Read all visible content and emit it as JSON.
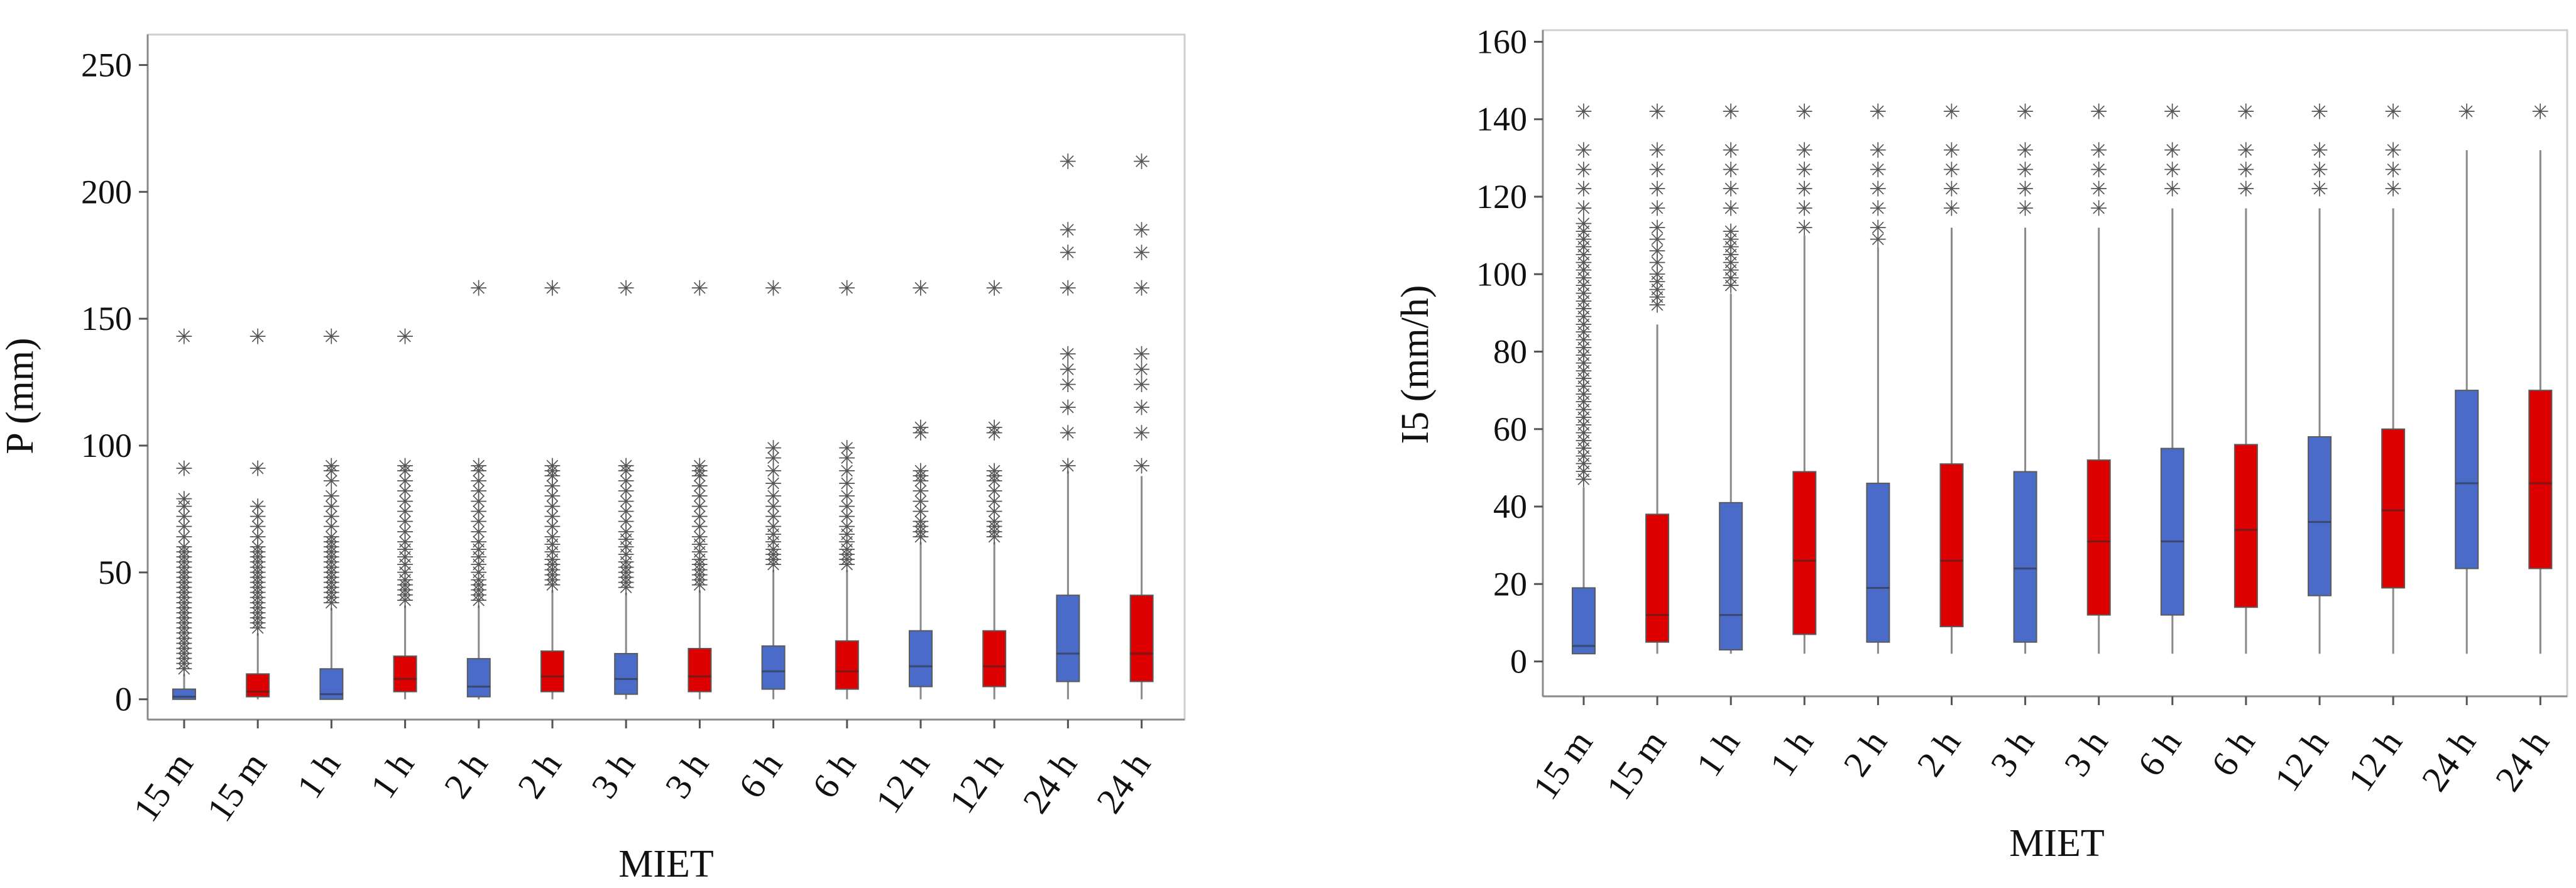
{
  "colors": {
    "blue": "#4a6cc8",
    "red": "#dd0000",
    "outlier": "#555555"
  },
  "chart_data": [
    {
      "type": "box",
      "title": "",
      "xlabel": "MIET",
      "ylabel": "P (mm)",
      "ylim": [
        -8,
        262
      ],
      "yticks": [
        0,
        50,
        100,
        150,
        200,
        250
      ],
      "outlier_symbol": "✳",
      "categories": [
        "15 m",
        "15 m",
        "1 h",
        "1 h",
        "2 h",
        "2 h",
        "3 h",
        "3 h",
        "6 h",
        "6 h",
        "12 h",
        "12 h",
        "24 h",
        "24 h"
      ],
      "series": [
        {
          "label": "15 m",
          "color": "blue",
          "q1": 0,
          "median": 1,
          "q3": 4,
          "whisker_low": 0,
          "whisker_high": 10,
          "outliers": [
            12,
            14,
            16,
            18,
            20,
            22,
            24,
            26,
            28,
            30,
            32,
            34,
            36,
            38,
            40,
            42,
            44,
            46,
            48,
            50,
            52,
            54,
            56,
            58,
            60,
            64,
            68,
            72,
            76,
            79,
            91,
            143
          ]
        },
        {
          "label": "15 m",
          "color": "red",
          "q1": 1,
          "median": 3,
          "q3": 10,
          "whisker_low": 0,
          "whisker_high": 26,
          "outliers": [
            28,
            30,
            32,
            34,
            36,
            38,
            40,
            42,
            44,
            46,
            48,
            50,
            52,
            54,
            56,
            58,
            60,
            64,
            68,
            72,
            76,
            91,
            143
          ]
        },
        {
          "label": "1 h",
          "color": "blue",
          "q1": 0,
          "median": 2,
          "q3": 12,
          "whisker_low": 0,
          "whisker_high": 36,
          "outliers": [
            38,
            40,
            42,
            44,
            46,
            48,
            50,
            52,
            54,
            56,
            58,
            60,
            62,
            64,
            68,
            72,
            76,
            80,
            86,
            90,
            92,
            143
          ]
        },
        {
          "label": "1 h",
          "color": "red",
          "q1": 3,
          "median": 8,
          "q3": 17,
          "whisker_low": 0,
          "whisker_high": 37,
          "outliers": [
            39,
            41,
            43,
            45,
            47,
            50,
            53,
            56,
            59,
            62,
            66,
            70,
            74,
            78,
            82,
            86,
            90,
            92,
            143
          ]
        },
        {
          "label": "2 h",
          "color": "blue",
          "q1": 1,
          "median": 5,
          "q3": 16,
          "whisker_low": 0,
          "whisker_high": 37,
          "outliers": [
            39,
            41,
            43,
            45,
            47,
            50,
            53,
            56,
            59,
            62,
            66,
            70,
            74,
            78,
            82,
            86,
            90,
            92,
            162
          ]
        },
        {
          "label": "2 h",
          "color": "red",
          "q1": 3,
          "median": 9,
          "q3": 19,
          "whisker_low": 0,
          "whisker_high": 43,
          "outliers": [
            45,
            47,
            49,
            51,
            53,
            55,
            58,
            61,
            64,
            68,
            72,
            76,
            80,
            84,
            88,
            90,
            92,
            162
          ]
        },
        {
          "label": "3 h",
          "color": "blue",
          "q1": 2,
          "median": 8,
          "q3": 18,
          "whisker_low": 0,
          "whisker_high": 42,
          "outliers": [
            44,
            46,
            48,
            50,
            52,
            54,
            57,
            60,
            63,
            66,
            70,
            74,
            78,
            82,
            86,
            90,
            92,
            162
          ]
        },
        {
          "label": "3 h",
          "color": "red",
          "q1": 3,
          "median": 9,
          "q3": 20,
          "whisker_low": 0,
          "whisker_high": 43,
          "outliers": [
            45,
            47,
            49,
            51,
            53,
            55,
            58,
            61,
            64,
            68,
            72,
            76,
            80,
            84,
            88,
            90,
            92,
            162
          ]
        },
        {
          "label": "6 h",
          "color": "blue",
          "q1": 4,
          "median": 11,
          "q3": 21,
          "whisker_low": 0,
          "whisker_high": 51,
          "outliers": [
            53,
            55,
            57,
            59,
            62,
            65,
            68,
            72,
            76,
            80,
            85,
            90,
            95,
            99,
            162
          ]
        },
        {
          "label": "6 h",
          "color": "red",
          "q1": 4,
          "median": 11,
          "q3": 23,
          "whisker_low": 0,
          "whisker_high": 51,
          "outliers": [
            53,
            55,
            57,
            59,
            62,
            65,
            68,
            72,
            76,
            80,
            85,
            90,
            95,
            99,
            162
          ]
        },
        {
          "label": "12 h",
          "color": "blue",
          "q1": 5,
          "median": 13,
          "q3": 27,
          "whisker_low": 0,
          "whisker_high": 62,
          "outliers": [
            64,
            66,
            68,
            70,
            74,
            78,
            82,
            86,
            88,
            90,
            105,
            107,
            162
          ]
        },
        {
          "label": "12 h",
          "color": "red",
          "q1": 5,
          "median": 13,
          "q3": 27,
          "whisker_low": 0,
          "whisker_high": 62,
          "outliers": [
            64,
            66,
            68,
            70,
            74,
            78,
            82,
            86,
            88,
            90,
            105,
            107,
            162
          ]
        },
        {
          "label": "24 h",
          "color": "blue",
          "q1": 7,
          "median": 18,
          "q3": 41,
          "whisker_low": 0,
          "whisker_high": 90,
          "outliers": [
            92,
            105,
            115,
            124,
            130,
            136,
            162,
            176,
            185,
            212
          ]
        },
        {
          "label": "24 h",
          "color": "red",
          "q1": 7,
          "median": 18,
          "q3": 41,
          "whisker_low": 0,
          "whisker_high": 88,
          "outliers": [
            92,
            105,
            115,
            124,
            130,
            136,
            162,
            176,
            185,
            212
          ]
        }
      ]
    },
    {
      "type": "box",
      "title": "",
      "xlabel": "MIET",
      "ylabel": "I5 (mm/h)",
      "ylim": [
        -9,
        163
      ],
      "yticks": [
        0,
        20,
        40,
        60,
        80,
        100,
        120,
        140,
        160
      ],
      "outlier_symbol": "✳",
      "categories": [
        "15 m",
        "15 m",
        "1 h",
        "1 h",
        "2 h",
        "2 h",
        "3 h",
        "3 h",
        "6 h",
        "6 h",
        "12 h",
        "12 h",
        "24 h",
        "24 h"
      ],
      "series": [
        {
          "label": "15 m",
          "color": "blue",
          "q1": 2,
          "median": 4,
          "q3": 19,
          "whisker_low": 2,
          "whisker_high": 45,
          "outliers": [
            47,
            49,
            51,
            53,
            55,
            57,
            59,
            61,
            63,
            65,
            67,
            69,
            71,
            73,
            75,
            77,
            79,
            81,
            83,
            85,
            87,
            89,
            91,
            93,
            95,
            97,
            99,
            101,
            103,
            105,
            107,
            109,
            111,
            113,
            117,
            122,
            127,
            132,
            142
          ]
        },
        {
          "label": "15 m",
          "color": "red",
          "q1": 5,
          "median": 12,
          "q3": 38,
          "whisker_low": 2,
          "whisker_high": 87,
          "outliers": [
            92,
            94,
            96,
            98,
            100,
            103,
            106,
            109,
            112,
            117,
            122,
            127,
            132,
            142
          ]
        },
        {
          "label": "1 h",
          "color": "blue",
          "q1": 3,
          "median": 12,
          "q3": 41,
          "whisker_low": 2,
          "whisker_high": 95,
          "outliers": [
            97,
            99,
            101,
            103,
            105,
            107,
            109,
            111,
            117,
            122,
            127,
            132,
            142
          ]
        },
        {
          "label": "1 h",
          "color": "red",
          "q1": 7,
          "median": 26,
          "q3": 49,
          "whisker_low": 2,
          "whisker_high": 110,
          "outliers": [
            112,
            117,
            122,
            127,
            132,
            142
          ]
        },
        {
          "label": "2 h",
          "color": "blue",
          "q1": 5,
          "median": 19,
          "q3": 46,
          "whisker_low": 2,
          "whisker_high": 107,
          "outliers": [
            109,
            112,
            117,
            122,
            127,
            132,
            142
          ]
        },
        {
          "label": "2 h",
          "color": "red",
          "q1": 9,
          "median": 26,
          "q3": 51,
          "whisker_low": 2,
          "whisker_high": 112,
          "outliers": [
            117,
            122,
            127,
            132,
            142
          ]
        },
        {
          "label": "3 h",
          "color": "blue",
          "q1": 5,
          "median": 24,
          "q3": 49,
          "whisker_low": 2,
          "whisker_high": 112,
          "outliers": [
            117,
            122,
            127,
            132,
            142
          ]
        },
        {
          "label": "3 h",
          "color": "red",
          "q1": 12,
          "median": 31,
          "q3": 52,
          "whisker_low": 2,
          "whisker_high": 112,
          "outliers": [
            117,
            122,
            127,
            132,
            142
          ]
        },
        {
          "label": "6 h",
          "color": "blue",
          "q1": 12,
          "median": 31,
          "q3": 55,
          "whisker_low": 2,
          "whisker_high": 117,
          "outliers": [
            122,
            127,
            132,
            142
          ]
        },
        {
          "label": "6 h",
          "color": "red",
          "q1": 14,
          "median": 34,
          "q3": 56,
          "whisker_low": 2,
          "whisker_high": 117,
          "outliers": [
            122,
            127,
            132,
            142
          ]
        },
        {
          "label": "12 h",
          "color": "blue",
          "q1": 17,
          "median": 36,
          "q3": 58,
          "whisker_low": 2,
          "whisker_high": 117,
          "outliers": [
            122,
            127,
            132,
            142
          ]
        },
        {
          "label": "12 h",
          "color": "red",
          "q1": 19,
          "median": 39,
          "q3": 60,
          "whisker_low": 2,
          "whisker_high": 117,
          "outliers": [
            122,
            127,
            132,
            142
          ]
        },
        {
          "label": "24 h",
          "color": "blue",
          "q1": 24,
          "median": 46,
          "q3": 70,
          "whisker_low": 2,
          "whisker_high": 132,
          "outliers": [
            142
          ]
        },
        {
          "label": "24 h",
          "color": "red",
          "q1": 24,
          "median": 46,
          "q3": 70,
          "whisker_low": 2,
          "whisker_high": 132,
          "outliers": [
            142
          ]
        }
      ]
    }
  ]
}
